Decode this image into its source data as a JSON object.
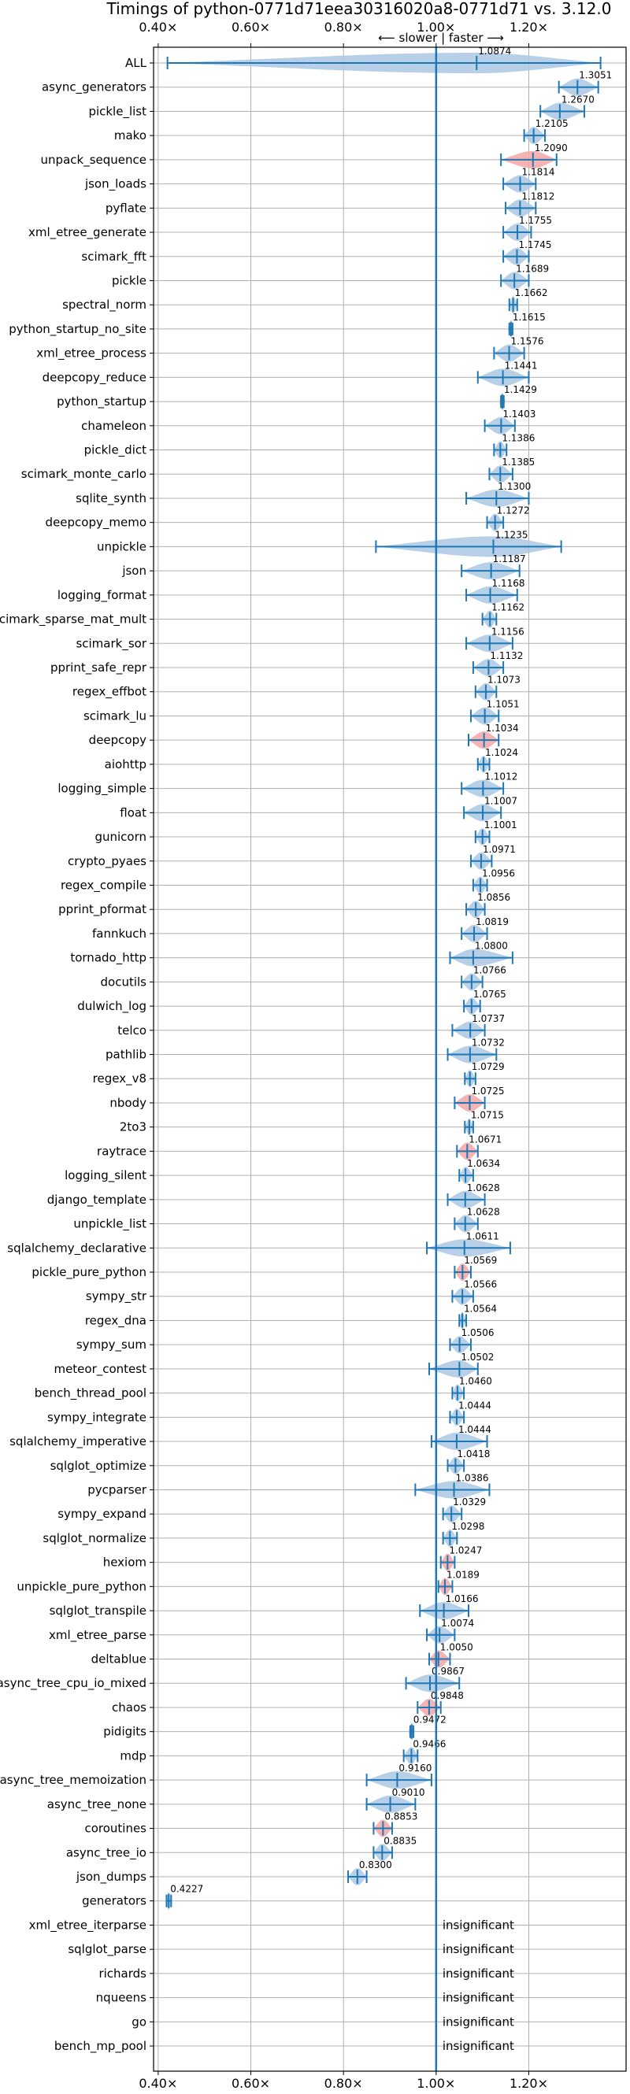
{
  "chart_data": {
    "type": "violin",
    "title": "Timings of python-0771d71eea30316020a8-0771d71 vs. 3.12.0",
    "direction_label": "⟵ slower  |  faster ⟶",
    "xlim": [
      0.39,
      1.41
    ],
    "xticks": [
      0.4,
      0.6,
      0.8,
      1.0,
      1.2
    ],
    "xtick_labels": [
      "0.40×",
      "0.60×",
      "0.80×",
      "1.00×",
      "1.20×"
    ],
    "reference_line": 1.0,
    "grid": true,
    "colors": {
      "normal": "#aac8e3",
      "highlight": "#f4a6a6",
      "line": "#1f77b4"
    },
    "insignificant_label": "insignificant",
    "benchmarks": [
      {
        "name": "ALL",
        "value": 1.0874,
        "value_label": "1.0874",
        "lo": 0.42,
        "hi": 1.355,
        "highlight": false,
        "wide": true
      },
      {
        "name": "async_generators",
        "value": 1.3051,
        "value_label": "1.3051",
        "lo": 1.265,
        "hi": 1.35,
        "highlight": false
      },
      {
        "name": "pickle_list",
        "value": 1.267,
        "value_label": "1.2670",
        "lo": 1.225,
        "hi": 1.32,
        "highlight": false
      },
      {
        "name": "mako",
        "value": 1.2105,
        "value_label": "1.2105",
        "lo": 1.19,
        "hi": 1.235,
        "highlight": false
      },
      {
        "name": "unpack_sequence",
        "value": 1.209,
        "value_label": "1.2090",
        "lo": 1.14,
        "hi": 1.26,
        "highlight": true
      },
      {
        "name": "json_loads",
        "value": 1.1814,
        "value_label": "1.1814",
        "lo": 1.145,
        "hi": 1.215,
        "highlight": false
      },
      {
        "name": "pyflate",
        "value": 1.1812,
        "value_label": "1.1812",
        "lo": 1.15,
        "hi": 1.215,
        "highlight": false
      },
      {
        "name": "xml_etree_generate",
        "value": 1.1755,
        "value_label": "1.1755",
        "lo": 1.145,
        "hi": 1.205,
        "highlight": false
      },
      {
        "name": "scimark_fft",
        "value": 1.1745,
        "value_label": "1.1745",
        "lo": 1.145,
        "hi": 1.2,
        "highlight": false
      },
      {
        "name": "pickle",
        "value": 1.1689,
        "value_label": "1.1689",
        "lo": 1.14,
        "hi": 1.2,
        "highlight": false
      },
      {
        "name": "spectral_norm",
        "value": 1.1662,
        "value_label": "1.1662",
        "lo": 1.158,
        "hi": 1.175,
        "highlight": false
      },
      {
        "name": "python_startup_no_site",
        "value": 1.1615,
        "value_label": "1.1615",
        "lo": 1.158,
        "hi": 1.165,
        "highlight": false
      },
      {
        "name": "xml_etree_process",
        "value": 1.1576,
        "value_label": "1.1576",
        "lo": 1.125,
        "hi": 1.19,
        "highlight": false
      },
      {
        "name": "deepcopy_reduce",
        "value": 1.1441,
        "value_label": "1.1441",
        "lo": 1.09,
        "hi": 1.2,
        "highlight": false
      },
      {
        "name": "python_startup",
        "value": 1.1429,
        "value_label": "1.1429",
        "lo": 1.14,
        "hi": 1.146,
        "highlight": false
      },
      {
        "name": "chameleon",
        "value": 1.1403,
        "value_label": "1.1403",
        "lo": 1.105,
        "hi": 1.17,
        "highlight": false
      },
      {
        "name": "pickle_dict",
        "value": 1.1386,
        "value_label": "1.1386",
        "lo": 1.125,
        "hi": 1.152,
        "highlight": false
      },
      {
        "name": "scimark_monte_carlo",
        "value": 1.1385,
        "value_label": "1.1385",
        "lo": 1.115,
        "hi": 1.165,
        "highlight": false
      },
      {
        "name": "sqlite_synth",
        "value": 1.13,
        "value_label": "1.1300",
        "lo": 1.065,
        "hi": 1.2,
        "highlight": false
      },
      {
        "name": "deepcopy_memo",
        "value": 1.1272,
        "value_label": "1.1272",
        "lo": 1.11,
        "hi": 1.145,
        "highlight": false
      },
      {
        "name": "unpickle",
        "value": 1.1235,
        "value_label": "1.1235",
        "lo": 0.87,
        "hi": 1.27,
        "highlight": false,
        "wide": true
      },
      {
        "name": "json",
        "value": 1.1187,
        "value_label": "1.1187",
        "lo": 1.055,
        "hi": 1.18,
        "highlight": false
      },
      {
        "name": "logging_format",
        "value": 1.1168,
        "value_label": "1.1168",
        "lo": 1.065,
        "hi": 1.175,
        "highlight": false
      },
      {
        "name": "scimark_sparse_mat_mult",
        "value": 1.1162,
        "value_label": "1.1162",
        "lo": 1.1,
        "hi": 1.13,
        "highlight": false
      },
      {
        "name": "scimark_sor",
        "value": 1.1156,
        "value_label": "1.1156",
        "lo": 1.065,
        "hi": 1.165,
        "highlight": false
      },
      {
        "name": "pprint_safe_repr",
        "value": 1.1132,
        "value_label": "1.1132",
        "lo": 1.08,
        "hi": 1.145,
        "highlight": false
      },
      {
        "name": "regex_effbot",
        "value": 1.1073,
        "value_label": "1.1073",
        "lo": 1.085,
        "hi": 1.13,
        "highlight": false
      },
      {
        "name": "scimark_lu",
        "value": 1.1051,
        "value_label": "1.1051",
        "lo": 1.075,
        "hi": 1.135,
        "highlight": false
      },
      {
        "name": "deepcopy",
        "value": 1.1034,
        "value_label": "1.1034",
        "lo": 1.07,
        "hi": 1.135,
        "highlight": true
      },
      {
        "name": "aiohttp",
        "value": 1.1024,
        "value_label": "1.1024",
        "lo": 1.09,
        "hi": 1.115,
        "highlight": false
      },
      {
        "name": "logging_simple",
        "value": 1.1012,
        "value_label": "1.1012",
        "lo": 1.055,
        "hi": 1.145,
        "highlight": false
      },
      {
        "name": "float",
        "value": 1.1007,
        "value_label": "1.1007",
        "lo": 1.06,
        "hi": 1.14,
        "highlight": false
      },
      {
        "name": "gunicorn",
        "value": 1.1001,
        "value_label": "1.1001",
        "lo": 1.085,
        "hi": 1.115,
        "highlight": false
      },
      {
        "name": "crypto_pyaes",
        "value": 1.0971,
        "value_label": "1.0971",
        "lo": 1.075,
        "hi": 1.12,
        "highlight": false
      },
      {
        "name": "regex_compile",
        "value": 1.0956,
        "value_label": "1.0956",
        "lo": 1.08,
        "hi": 1.11,
        "highlight": false
      },
      {
        "name": "pprint_pformat",
        "value": 1.0856,
        "value_label": "1.0856",
        "lo": 1.065,
        "hi": 1.105,
        "highlight": false
      },
      {
        "name": "fannkuch",
        "value": 1.0819,
        "value_label": "1.0819",
        "lo": 1.055,
        "hi": 1.11,
        "highlight": false
      },
      {
        "name": "tornado_http",
        "value": 1.08,
        "value_label": "1.0800",
        "lo": 1.03,
        "hi": 1.165,
        "highlight": false
      },
      {
        "name": "docutils",
        "value": 1.0766,
        "value_label": "1.0766",
        "lo": 1.055,
        "hi": 1.1,
        "highlight": false
      },
      {
        "name": "dulwich_log",
        "value": 1.0765,
        "value_label": "1.0765",
        "lo": 1.06,
        "hi": 1.095,
        "highlight": false
      },
      {
        "name": "telco",
        "value": 1.0737,
        "value_label": "1.0737",
        "lo": 1.035,
        "hi": 1.105,
        "highlight": false
      },
      {
        "name": "pathlib",
        "value": 1.0732,
        "value_label": "1.0732",
        "lo": 1.025,
        "hi": 1.13,
        "highlight": false
      },
      {
        "name": "regex_v8",
        "value": 1.0729,
        "value_label": "1.0729",
        "lo": 1.062,
        "hi": 1.085,
        "highlight": false
      },
      {
        "name": "nbody",
        "value": 1.0725,
        "value_label": "1.0725",
        "lo": 1.04,
        "hi": 1.105,
        "highlight": true
      },
      {
        "name": "2to3",
        "value": 1.0715,
        "value_label": "1.0715",
        "lo": 1.062,
        "hi": 1.08,
        "highlight": false
      },
      {
        "name": "raytrace",
        "value": 1.0671,
        "value_label": "1.0671",
        "lo": 1.045,
        "hi": 1.09,
        "highlight": true
      },
      {
        "name": "logging_silent",
        "value": 1.0634,
        "value_label": "1.0634",
        "lo": 1.05,
        "hi": 1.08,
        "highlight": false
      },
      {
        "name": "django_template",
        "value": 1.0628,
        "value_label": "1.0628",
        "lo": 1.025,
        "hi": 1.105,
        "highlight": false
      },
      {
        "name": "unpickle_list",
        "value": 1.0628,
        "value_label": "1.0628",
        "lo": 1.04,
        "hi": 1.09,
        "highlight": false
      },
      {
        "name": "sqlalchemy_declarative",
        "value": 1.0611,
        "value_label": "1.0611",
        "lo": 0.98,
        "hi": 1.16,
        "highlight": false
      },
      {
        "name": "pickle_pure_python",
        "value": 1.0569,
        "value_label": "1.0569",
        "lo": 1.04,
        "hi": 1.075,
        "highlight": true
      },
      {
        "name": "sympy_str",
        "value": 1.0566,
        "value_label": "1.0566",
        "lo": 1.035,
        "hi": 1.08,
        "highlight": false
      },
      {
        "name": "regex_dna",
        "value": 1.0564,
        "value_label": "1.0564",
        "lo": 1.05,
        "hi": 1.065,
        "highlight": false
      },
      {
        "name": "sympy_sum",
        "value": 1.0506,
        "value_label": "1.0506",
        "lo": 1.03,
        "hi": 1.075,
        "highlight": false
      },
      {
        "name": "meteor_contest",
        "value": 1.0502,
        "value_label": "1.0502",
        "lo": 0.985,
        "hi": 1.09,
        "highlight": false
      },
      {
        "name": "bench_thread_pool",
        "value": 1.046,
        "value_label": "1.0460",
        "lo": 1.035,
        "hi": 1.06,
        "highlight": false
      },
      {
        "name": "sympy_integrate",
        "value": 1.0444,
        "value_label": "1.0444",
        "lo": 1.03,
        "hi": 1.06,
        "highlight": false
      },
      {
        "name": "sqlalchemy_imperative",
        "value": 1.0444,
        "value_label": "1.0444",
        "lo": 0.99,
        "hi": 1.11,
        "highlight": false
      },
      {
        "name": "sqlglot_optimize",
        "value": 1.0418,
        "value_label": "1.0418",
        "lo": 1.025,
        "hi": 1.06,
        "highlight": false
      },
      {
        "name": "pycparser",
        "value": 1.0386,
        "value_label": "1.0386",
        "lo": 0.955,
        "hi": 1.115,
        "highlight": false
      },
      {
        "name": "sympy_expand",
        "value": 1.0329,
        "value_label": "1.0329",
        "lo": 1.015,
        "hi": 1.055,
        "highlight": false
      },
      {
        "name": "sqlglot_normalize",
        "value": 1.0298,
        "value_label": "1.0298",
        "lo": 1.015,
        "hi": 1.045,
        "highlight": false
      },
      {
        "name": "hexiom",
        "value": 1.0247,
        "value_label": "1.0247",
        "lo": 1.01,
        "hi": 1.04,
        "highlight": true
      },
      {
        "name": "unpickle_pure_python",
        "value": 1.0189,
        "value_label": "1.0189",
        "lo": 1.005,
        "hi": 1.035,
        "highlight": true
      },
      {
        "name": "sqlglot_transpile",
        "value": 1.0166,
        "value_label": "1.0166",
        "lo": 0.965,
        "hi": 1.07,
        "highlight": false
      },
      {
        "name": "xml_etree_parse",
        "value": 1.0074,
        "value_label": "1.0074",
        "lo": 0.98,
        "hi": 1.04,
        "highlight": false
      },
      {
        "name": "deltablue",
        "value": 1.005,
        "value_label": "1.0050",
        "lo": 0.985,
        "hi": 1.03,
        "highlight": true
      },
      {
        "name": "async_tree_cpu_io_mixed",
        "value": 0.9867,
        "value_label": "0.9867",
        "lo": 0.935,
        "hi": 1.05,
        "highlight": false
      },
      {
        "name": "chaos",
        "value": 0.9848,
        "value_label": "0.9848",
        "lo": 0.96,
        "hi": 1.01,
        "highlight": true
      },
      {
        "name": "pidigits",
        "value": 0.9472,
        "value_label": "0.9472",
        "lo": 0.944,
        "hi": 0.951,
        "highlight": false
      },
      {
        "name": "mdp",
        "value": 0.9466,
        "value_label": "0.9466",
        "lo": 0.93,
        "hi": 0.96,
        "highlight": false
      },
      {
        "name": "async_tree_memoization",
        "value": 0.916,
        "value_label": "0.9160",
        "lo": 0.85,
        "hi": 0.99,
        "highlight": false
      },
      {
        "name": "async_tree_none",
        "value": 0.901,
        "value_label": "0.9010",
        "lo": 0.85,
        "hi": 0.955,
        "highlight": false
      },
      {
        "name": "coroutines",
        "value": 0.8853,
        "value_label": "0.8853",
        "lo": 0.865,
        "hi": 0.905,
        "highlight": true
      },
      {
        "name": "async_tree_io",
        "value": 0.8835,
        "value_label": "0.8835",
        "lo": 0.865,
        "hi": 0.905,
        "highlight": false
      },
      {
        "name": "json_dumps",
        "value": 0.83,
        "value_label": "0.8300",
        "lo": 0.81,
        "hi": 0.85,
        "highlight": false
      },
      {
        "name": "generators",
        "value": 0.4227,
        "value_label": "0.4227",
        "lo": 0.418,
        "hi": 0.428,
        "highlight": false
      },
      {
        "name": "xml_etree_iterparse",
        "value": null,
        "value_label": "",
        "insignificant": true
      },
      {
        "name": "sqlglot_parse",
        "value": null,
        "value_label": "",
        "insignificant": true
      },
      {
        "name": "richards",
        "value": null,
        "value_label": "",
        "insignificant": true
      },
      {
        "name": "nqueens",
        "value": null,
        "value_label": "",
        "insignificant": true
      },
      {
        "name": "go",
        "value": null,
        "value_label": "",
        "insignificant": true
      },
      {
        "name": "bench_mp_pool",
        "value": null,
        "value_label": "",
        "insignificant": true
      }
    ]
  }
}
